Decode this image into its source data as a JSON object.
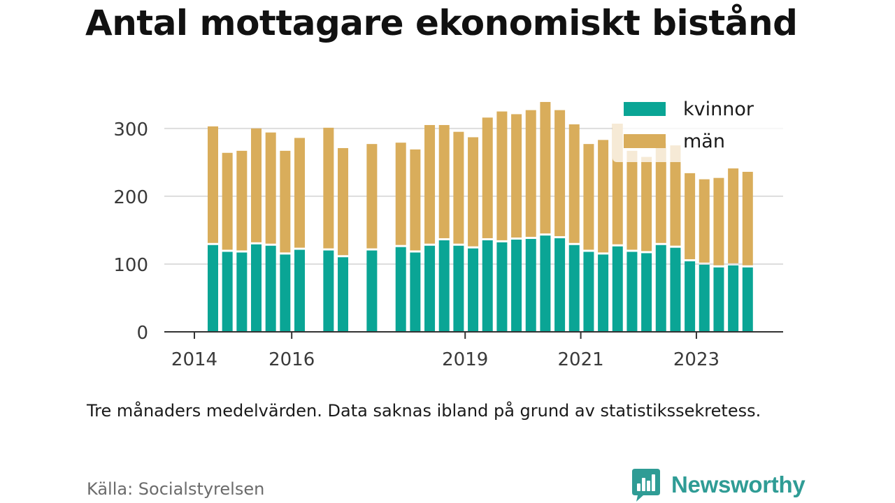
{
  "title": "Antal mottagare ekonomiskt bistånd",
  "note": "Tre månaders medelvärden. Data saknas ibland på grund av statistikssekretess.",
  "source": "Källa: Socialstyrelsen",
  "brand": {
    "name": "Newsworthy",
    "icon": "newsworthy-logo-icon",
    "color": "#2f9c95"
  },
  "colors": {
    "kvinnor": "#0aa595",
    "man": "#d9ad5b",
    "grid": "#dddddd",
    "axis": "#333333",
    "text": "#3a3a3a"
  },
  "chart_data": {
    "type": "bar",
    "stacked": true,
    "title": "Antal mottagare ekonomiskt bistånd",
    "x_tick_labels": [
      "2014",
      "2016",
      "2019",
      "2021",
      "2023"
    ],
    "y_ticks": [
      0,
      100,
      200,
      300
    ],
    "ylim": [
      0,
      340
    ],
    "grid": true,
    "legend_position": "top-right",
    "x": [
      "2014-Q2",
      "2014-Q3",
      "2014-Q4",
      "2015-Q1",
      "2015-Q2",
      "2015-Q3",
      "2015-Q4",
      "2016-Q1",
      "2016-Q2",
      "2016-Q3",
      "2016-Q4",
      "2017-Q1",
      "2017-Q2",
      "2017-Q3",
      "2017-Q4",
      "2018-Q1",
      "2018-Q2",
      "2018-Q3",
      "2018-Q4",
      "2019-Q1",
      "2019-Q2",
      "2019-Q3",
      "2019-Q4",
      "2020-Q1",
      "2020-Q2",
      "2020-Q3",
      "2020-Q4",
      "2021-Q1",
      "2021-Q2",
      "2021-Q3",
      "2021-Q4",
      "2022-Q1",
      "2022-Q2",
      "2022-Q3",
      "2022-Q4",
      "2023-Q1",
      "2023-Q2",
      "2023-Q3"
    ],
    "series": [
      {
        "name": "kvinnor",
        "values": [
          128,
          118,
          117,
          129,
          127,
          114,
          121,
          null,
          120,
          110,
          null,
          120,
          null,
          125,
          117,
          127,
          135,
          127,
          123,
          135,
          132,
          136,
          137,
          142,
          138,
          128,
          118,
          114,
          126,
          118,
          116,
          128,
          124,
          104,
          99,
          95,
          98,
          95
        ]
      },
      {
        "name": "män",
        "values": [
          175,
          146,
          150,
          171,
          167,
          153,
          165,
          null,
          181,
          161,
          null,
          157,
          null,
          154,
          152,
          178,
          170,
          168,
          164,
          181,
          193,
          185,
          190,
          197,
          189,
          178,
          159,
          169,
          181,
          149,
          142,
          150,
          151,
          130,
          126,
          132,
          143,
          141
        ]
      }
    ]
  }
}
